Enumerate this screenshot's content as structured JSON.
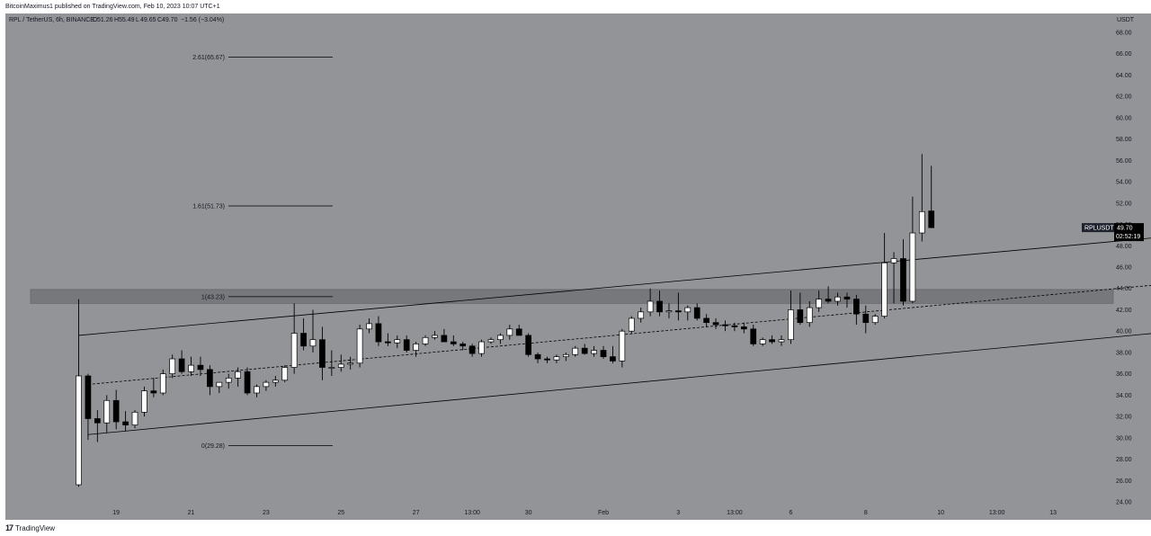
{
  "header": {
    "published_by": "BitcoinMaximus1 published on TradingView.com, Feb 10, 2023 10:07 UTC+1"
  },
  "footer": {
    "brand": "TradingView",
    "brand_mark": "17"
  },
  "symbol_info": {
    "pair": "RPL / TetherUS, 6h, BINANCE",
    "ohlc": [
      {
        "label": "O",
        "value": "51.26"
      },
      {
        "label": "H",
        "value": "55.49"
      },
      {
        "label": "L",
        "value": "49.65"
      },
      {
        "label": "C",
        "value": "49.70"
      }
    ],
    "change": "−1.56 (−3.04%)"
  },
  "price_tag": {
    "symbol": "RPLUSDT",
    "price": "49.70",
    "countdown": "02:52:19"
  },
  "chart_data": {
    "type": "candlestick",
    "currency": "USDT",
    "y_range": [
      24,
      70
    ],
    "y_ticks": [
      "68.00",
      "66.00",
      "64.00",
      "62.00",
      "60.00",
      "58.00",
      "56.00",
      "54.00",
      "52.00",
      "50.00",
      "48.00",
      "46.00",
      "44.00",
      "42.00",
      "40.00",
      "38.00",
      "36.00",
      "34.00",
      "32.00",
      "30.00",
      "28.00",
      "26.00",
      "24.00"
    ],
    "x_range": [
      0,
      128
    ],
    "x_ticks": [
      {
        "label": "19",
        "x": 4
      },
      {
        "label": "21",
        "x": 12
      },
      {
        "label": "23",
        "x": 20
      },
      {
        "label": "25",
        "x": 28
      },
      {
        "label": "27",
        "x": 36
      },
      {
        "label": "13:00",
        "x": 42
      },
      {
        "label": "30",
        "x": 48
      },
      {
        "label": "Feb",
        "x": 56
      },
      {
        "label": "3",
        "x": 64
      },
      {
        "label": "13:00",
        "x": 70
      },
      {
        "label": "6",
        "x": 76
      },
      {
        "label": "8",
        "x": 84
      },
      {
        "label": "10",
        "x": 92
      },
      {
        "label": "13:00",
        "x": 98
      },
      {
        "label": "13",
        "x": 104
      }
    ],
    "candles": [
      {
        "x": 0,
        "o": 25.6,
        "h": 43.0,
        "l": 25.4,
        "c": 35.8
      },
      {
        "x": 1,
        "o": 35.8,
        "h": 36.0,
        "l": 29.8,
        "c": 31.8
      },
      {
        "x": 2,
        "o": 31.8,
        "h": 32.6,
        "l": 29.6,
        "c": 31.4
      },
      {
        "x": 3,
        "o": 31.4,
        "h": 34.0,
        "l": 30.5,
        "c": 33.5
      },
      {
        "x": 4,
        "o": 33.5,
        "h": 34.5,
        "l": 30.8,
        "c": 31.5
      },
      {
        "x": 5,
        "o": 31.5,
        "h": 32.5,
        "l": 30.6,
        "c": 31.2
      },
      {
        "x": 6,
        "o": 31.2,
        "h": 32.6,
        "l": 30.9,
        "c": 32.4
      },
      {
        "x": 7,
        "o": 32.4,
        "h": 34.8,
        "l": 32.0,
        "c": 34.4
      },
      {
        "x": 8,
        "o": 34.4,
        "h": 35.6,
        "l": 33.8,
        "c": 34.2
      },
      {
        "x": 9,
        "o": 34.2,
        "h": 36.4,
        "l": 34.0,
        "c": 36.0
      },
      {
        "x": 10,
        "o": 36.0,
        "h": 37.8,
        "l": 35.6,
        "c": 37.4
      },
      {
        "x": 11,
        "o": 37.4,
        "h": 38.2,
        "l": 36.0,
        "c": 36.2
      },
      {
        "x": 12,
        "o": 36.2,
        "h": 37.6,
        "l": 35.8,
        "c": 36.8
      },
      {
        "x": 13,
        "o": 36.8,
        "h": 37.6,
        "l": 35.8,
        "c": 36.4
      },
      {
        "x": 14,
        "o": 36.4,
        "h": 36.8,
        "l": 34.0,
        "c": 34.8
      },
      {
        "x": 15,
        "o": 34.8,
        "h": 35.2,
        "l": 34.2,
        "c": 35.2
      },
      {
        "x": 16,
        "o": 35.2,
        "h": 36.0,
        "l": 34.6,
        "c": 35.6
      },
      {
        "x": 17,
        "o": 35.6,
        "h": 36.6,
        "l": 34.8,
        "c": 36.2
      },
      {
        "x": 18,
        "o": 36.2,
        "h": 36.6,
        "l": 34.0,
        "c": 34.2
      },
      {
        "x": 19,
        "o": 34.2,
        "h": 35.0,
        "l": 33.8,
        "c": 34.8
      },
      {
        "x": 20,
        "o": 34.8,
        "h": 35.4,
        "l": 34.4,
        "c": 35.2
      },
      {
        "x": 21,
        "o": 35.2,
        "h": 35.8,
        "l": 34.8,
        "c": 35.4
      },
      {
        "x": 22,
        "o": 35.4,
        "h": 36.8,
        "l": 35.2,
        "c": 36.6
      },
      {
        "x": 23,
        "o": 36.6,
        "h": 42.6,
        "l": 36.0,
        "c": 39.8
      },
      {
        "x": 24,
        "o": 39.8,
        "h": 41.2,
        "l": 38.2,
        "c": 38.6
      },
      {
        "x": 25,
        "o": 38.6,
        "h": 42.0,
        "l": 38.0,
        "c": 39.2
      },
      {
        "x": 26,
        "o": 39.2,
        "h": 40.4,
        "l": 35.4,
        "c": 36.6
      },
      {
        "x": 27,
        "o": 36.6,
        "h": 38.2,
        "l": 35.8,
        "c": 36.6
      },
      {
        "x": 28,
        "o": 36.6,
        "h": 37.8,
        "l": 36.2,
        "c": 36.9
      },
      {
        "x": 29,
        "o": 36.9,
        "h": 37.6,
        "l": 36.4,
        "c": 37.0
      },
      {
        "x": 30,
        "o": 37.0,
        "h": 40.6,
        "l": 36.6,
        "c": 40.2
      },
      {
        "x": 31,
        "o": 40.2,
        "h": 41.2,
        "l": 39.8,
        "c": 40.7
      },
      {
        "x": 32,
        "o": 40.7,
        "h": 41.4,
        "l": 38.6,
        "c": 39.0
      },
      {
        "x": 33,
        "o": 39.0,
        "h": 39.8,
        "l": 38.6,
        "c": 38.9
      },
      {
        "x": 34,
        "o": 38.9,
        "h": 39.6,
        "l": 38.4,
        "c": 39.2
      },
      {
        "x": 35,
        "o": 39.2,
        "h": 39.6,
        "l": 38.0,
        "c": 38.2
      },
      {
        "x": 36,
        "o": 38.2,
        "h": 39.0,
        "l": 37.6,
        "c": 38.8
      },
      {
        "x": 37,
        "o": 38.8,
        "h": 39.6,
        "l": 38.6,
        "c": 39.4
      },
      {
        "x": 38,
        "o": 39.4,
        "h": 40.0,
        "l": 39.2,
        "c": 39.6
      },
      {
        "x": 39,
        "o": 39.6,
        "h": 40.2,
        "l": 39.2,
        "c": 39.0
      },
      {
        "x": 40,
        "o": 39.0,
        "h": 39.6,
        "l": 38.6,
        "c": 38.8
      },
      {
        "x": 41,
        "o": 38.8,
        "h": 39.0,
        "l": 38.2,
        "c": 38.6
      },
      {
        "x": 42,
        "o": 38.6,
        "h": 38.8,
        "l": 37.6,
        "c": 37.9
      },
      {
        "x": 43,
        "o": 37.9,
        "h": 39.2,
        "l": 37.6,
        "c": 39.0
      },
      {
        "x": 44,
        "o": 39.0,
        "h": 39.4,
        "l": 38.8,
        "c": 39.2
      },
      {
        "x": 45,
        "o": 39.2,
        "h": 39.8,
        "l": 38.8,
        "c": 39.6
      },
      {
        "x": 46,
        "o": 39.6,
        "h": 40.6,
        "l": 39.2,
        "c": 40.2
      },
      {
        "x": 47,
        "o": 40.2,
        "h": 40.6,
        "l": 39.6,
        "c": 39.6
      },
      {
        "x": 48,
        "o": 39.6,
        "h": 39.8,
        "l": 37.6,
        "c": 37.8
      },
      {
        "x": 49,
        "o": 37.8,
        "h": 38.0,
        "l": 37.0,
        "c": 37.4
      },
      {
        "x": 50,
        "o": 37.4,
        "h": 37.6,
        "l": 37.0,
        "c": 37.3
      },
      {
        "x": 51,
        "o": 37.3,
        "h": 37.8,
        "l": 37.0,
        "c": 37.6
      },
      {
        "x": 52,
        "o": 37.6,
        "h": 38.0,
        "l": 37.2,
        "c": 37.8
      },
      {
        "x": 53,
        "o": 37.8,
        "h": 38.6,
        "l": 37.6,
        "c": 38.4
      },
      {
        "x": 54,
        "o": 38.4,
        "h": 38.8,
        "l": 37.8,
        "c": 37.9
      },
      {
        "x": 55,
        "o": 37.9,
        "h": 38.6,
        "l": 37.6,
        "c": 38.2
      },
      {
        "x": 56,
        "o": 38.2,
        "h": 38.6,
        "l": 37.4,
        "c": 37.6
      },
      {
        "x": 57,
        "o": 37.6,
        "h": 38.6,
        "l": 37.0,
        "c": 37.2
      },
      {
        "x": 58,
        "o": 37.2,
        "h": 40.2,
        "l": 36.6,
        "c": 40.0
      },
      {
        "x": 59,
        "o": 40.0,
        "h": 41.4,
        "l": 39.8,
        "c": 41.2
      },
      {
        "x": 60,
        "o": 41.2,
        "h": 42.2,
        "l": 40.8,
        "c": 41.8
      },
      {
        "x": 61,
        "o": 41.8,
        "h": 44.0,
        "l": 41.4,
        "c": 42.8
      },
      {
        "x": 62,
        "o": 42.8,
        "h": 43.8,
        "l": 41.4,
        "c": 41.8
      },
      {
        "x": 63,
        "o": 41.8,
        "h": 42.6,
        "l": 41.2,
        "c": 41.9
      },
      {
        "x": 64,
        "o": 41.9,
        "h": 43.6,
        "l": 41.0,
        "c": 41.8
      },
      {
        "x": 65,
        "o": 41.8,
        "h": 42.4,
        "l": 41.0,
        "c": 42.2
      },
      {
        "x": 66,
        "o": 42.2,
        "h": 42.6,
        "l": 41.0,
        "c": 41.2
      },
      {
        "x": 67,
        "o": 41.2,
        "h": 41.6,
        "l": 40.4,
        "c": 40.8
      },
      {
        "x": 68,
        "o": 40.8,
        "h": 41.2,
        "l": 40.2,
        "c": 40.6
      },
      {
        "x": 69,
        "o": 40.6,
        "h": 41.0,
        "l": 40.0,
        "c": 40.5
      },
      {
        "x": 70,
        "o": 40.5,
        "h": 40.8,
        "l": 40.0,
        "c": 40.4
      },
      {
        "x": 71,
        "o": 40.4,
        "h": 40.8,
        "l": 39.8,
        "c": 40.2
      },
      {
        "x": 72,
        "o": 40.2,
        "h": 40.6,
        "l": 38.6,
        "c": 38.8
      },
      {
        "x": 73,
        "o": 38.8,
        "h": 39.4,
        "l": 38.6,
        "c": 39.2
      },
      {
        "x": 74,
        "o": 39.2,
        "h": 39.6,
        "l": 38.8,
        "c": 39.0
      },
      {
        "x": 75,
        "o": 39.0,
        "h": 39.6,
        "l": 38.6,
        "c": 39.2
      },
      {
        "x": 76,
        "o": 39.2,
        "h": 43.8,
        "l": 38.8,
        "c": 42.0
      },
      {
        "x": 77,
        "o": 42.0,
        "h": 43.6,
        "l": 40.6,
        "c": 40.8
      },
      {
        "x": 78,
        "o": 40.8,
        "h": 42.8,
        "l": 40.4,
        "c": 42.2
      },
      {
        "x": 79,
        "o": 42.2,
        "h": 43.8,
        "l": 41.8,
        "c": 43.0
      },
      {
        "x": 80,
        "o": 43.0,
        "h": 44.2,
        "l": 42.6,
        "c": 42.8
      },
      {
        "x": 81,
        "o": 42.8,
        "h": 43.6,
        "l": 42.4,
        "c": 43.2
      },
      {
        "x": 82,
        "o": 43.2,
        "h": 43.6,
        "l": 42.2,
        "c": 43.0
      },
      {
        "x": 83,
        "o": 43.0,
        "h": 43.4,
        "l": 40.6,
        "c": 41.6
      },
      {
        "x": 84,
        "o": 41.6,
        "h": 42.4,
        "l": 39.8,
        "c": 40.8
      },
      {
        "x": 85,
        "o": 40.8,
        "h": 41.6,
        "l": 40.6,
        "c": 41.4
      },
      {
        "x": 86,
        "o": 41.4,
        "h": 49.2,
        "l": 41.2,
        "c": 46.4
      },
      {
        "x": 87,
        "o": 46.4,
        "h": 47.4,
        "l": 42.6,
        "c": 46.8
      },
      {
        "x": 88,
        "o": 46.8,
        "h": 48.6,
        "l": 42.4,
        "c": 42.8
      },
      {
        "x": 89,
        "o": 42.8,
        "h": 52.6,
        "l": 42.6,
        "c": 49.2
      },
      {
        "x": 90,
        "o": 49.2,
        "h": 56.6,
        "l": 48.4,
        "c": 51.2
      },
      {
        "x": 91,
        "o": 51.26,
        "h": 55.49,
        "l": 49.65,
        "c": 49.7
      }
    ],
    "fib_levels": [
      {
        "label": "2.61(65.67)",
        "value": 65.67
      },
      {
        "label": "1.61(51.73)",
        "value": 51.73
      },
      {
        "label": "1(43.23)",
        "value": 43.23
      },
      {
        "label": "0(29.28)",
        "value": 29.28
      }
    ],
    "resistance_zone": {
      "low": 42.6,
      "high": 43.9
    },
    "trendlines": [
      {
        "style": "solid",
        "x1": 0,
        "y1": 39.6,
        "x2": 128,
        "y2": 49.8
      },
      {
        "style": "solid",
        "x1": 1,
        "y1": 30.3,
        "x2": 128,
        "y2": 40.9
      },
      {
        "style": "dashed",
        "x1": 1,
        "y1": 35.0,
        "x2": 128,
        "y2": 45.4
      }
    ],
    "colors": {
      "background": "#939498",
      "up_body": "#ffffff",
      "down_body": "#000000",
      "wick": "#000000",
      "zone": "#6e6f73"
    }
  }
}
